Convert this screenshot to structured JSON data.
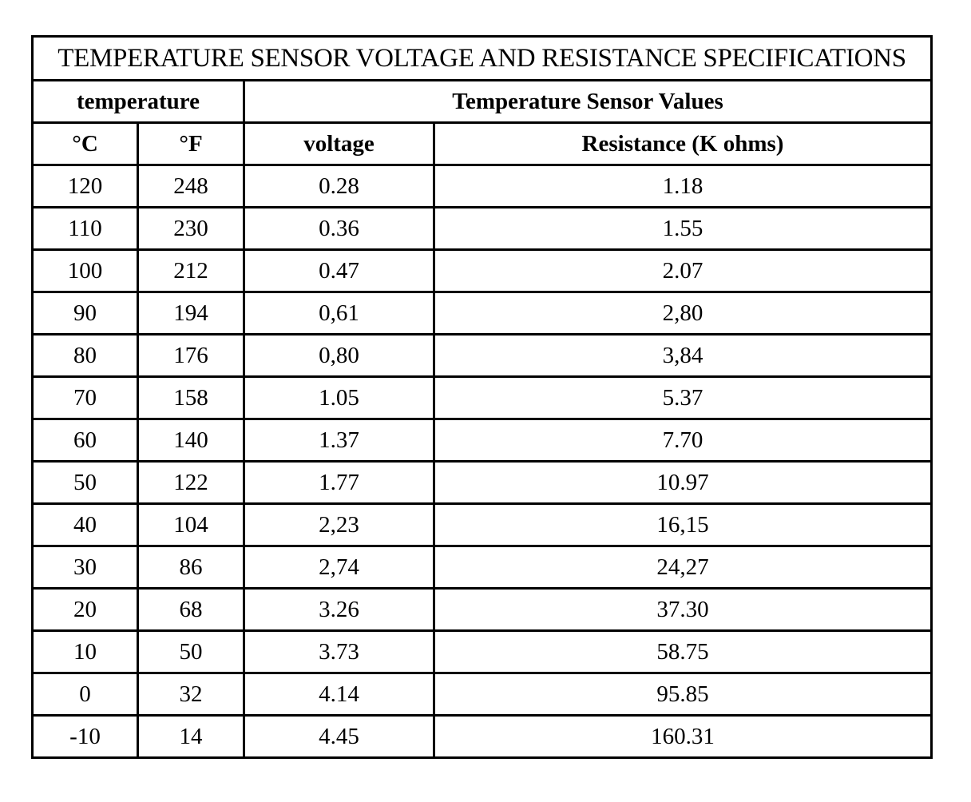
{
  "table": {
    "title": "TEMPERATURE SENSOR VOLTAGE AND RESISTANCE SPECIFICATIONS",
    "group_headers": {
      "temperature": "temperature",
      "sensor_values": "Temperature Sensor Values"
    },
    "column_headers": {
      "celsius": "°C",
      "fahrenheit": "°F",
      "voltage": "voltage",
      "resistance": "Resistance (K ohms)"
    },
    "rows": [
      {
        "c": "120",
        "f": "248",
        "v": "0.28",
        "r": "1.18"
      },
      {
        "c": "110",
        "f": "230",
        "v": "0.36",
        "r": "1.55"
      },
      {
        "c": "100",
        "f": "212",
        "v": "0.47",
        "r": "2.07"
      },
      {
        "c": "90",
        "f": "194",
        "v": "0,61",
        "r": "2,80"
      },
      {
        "c": "80",
        "f": "176",
        "v": "0,80",
        "r": "3,84"
      },
      {
        "c": "70",
        "f": "158",
        "v": "1.05",
        "r": "5.37"
      },
      {
        "c": "60",
        "f": "140",
        "v": "1.37",
        "r": "7.70"
      },
      {
        "c": "50",
        "f": "122",
        "v": "1.77",
        "r": "10.97"
      },
      {
        "c": "40",
        "f": "104",
        "v": "2,23",
        "r": "16,15"
      },
      {
        "c": "30",
        "f": "86",
        "v": "2,74",
        "r": "24,27"
      },
      {
        "c": "20",
        "f": "68",
        "v": "3.26",
        "r": "37.30"
      },
      {
        "c": "10",
        "f": "50",
        "v": "3.73",
        "r": "58.75"
      },
      {
        "c": "0",
        "f": "32",
        "v": "4.14",
        "r": "95.85"
      },
      {
        "c": "-10",
        "f": "14",
        "v": "4.45",
        "r": "160.31"
      }
    ]
  }
}
